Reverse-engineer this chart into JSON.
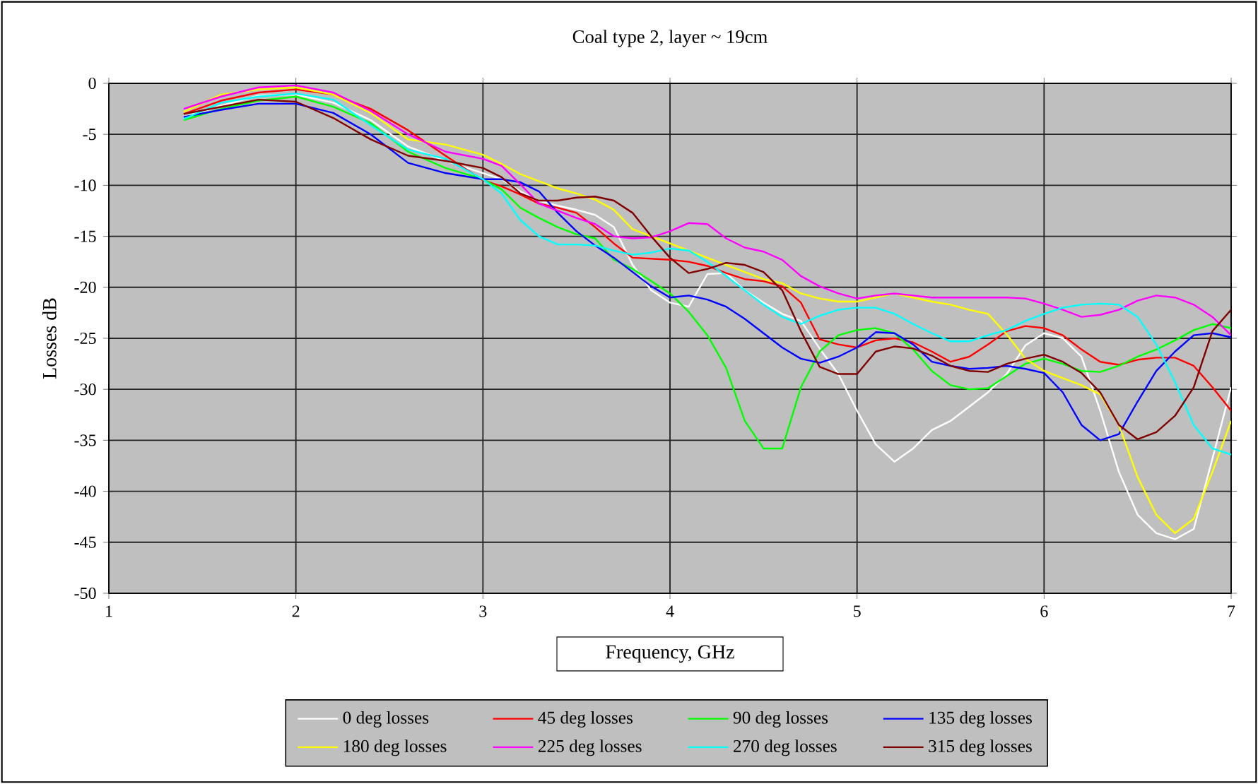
{
  "chart_data": {
    "type": "line",
    "title": "Coal type 2, layer ~ 19cm",
    "xlabel": "Frequency, GHz",
    "ylabel": "Losses dB",
    "x": [
      1.4,
      1.6,
      1.8,
      2.0,
      2.2,
      2.4,
      2.6,
      2.8,
      3.0,
      3.1,
      3.2,
      3.3,
      3.4,
      3.5,
      3.6,
      3.7,
      3.8,
      3.9,
      4.0,
      4.1,
      4.2,
      4.3,
      4.4,
      4.5,
      4.6,
      4.7,
      4.8,
      4.9,
      5.0,
      5.1,
      5.2,
      5.3,
      5.4,
      5.5,
      5.6,
      5.7,
      5.8,
      5.9,
      6.0,
      6.1,
      6.2,
      6.3,
      6.4,
      6.5,
      6.6,
      6.7,
      6.8,
      6.9,
      7.0
    ],
    "series": [
      {
        "name": "0 deg losses",
        "color": "#ffffff",
        "values": [
          -3.3,
          -2.2,
          -1.2,
          -1.1,
          -1.9,
          -3.6,
          -6.2,
          -7.6,
          -8.8,
          -9.4,
          -10.6,
          -11.5,
          -12.0,
          -12.4,
          -12.9,
          -14.1,
          -17.8,
          -20.3,
          -21.5,
          -21.9,
          -18.7,
          -18.6,
          -20.3,
          -21.5,
          -22.6,
          -23.3,
          -26.0,
          -28.5,
          -32.1,
          -35.4,
          -37.1,
          -35.8,
          -34.0,
          -33.1,
          -31.7,
          -30.3,
          -28.5,
          -25.7,
          -24.5,
          -25.0,
          -26.8,
          -32.1,
          -38.1,
          -42.3,
          -44.1,
          -44.7,
          -43.7,
          -36.8,
          -29.8
        ]
      },
      {
        "name": "45 deg losses",
        "color": "#ff0000",
        "values": [
          -3.0,
          -1.7,
          -0.9,
          -0.6,
          -1.1,
          -2.5,
          -4.6,
          -7.1,
          -9.5,
          -10.1,
          -10.9,
          -11.8,
          -12.2,
          -12.7,
          -14.1,
          -15.7,
          -17.1,
          -17.2,
          -17.3,
          -17.5,
          -17.9,
          -18.6,
          -19.2,
          -19.4,
          -19.9,
          -21.5,
          -25.1,
          -25.6,
          -25.9,
          -25.2,
          -25.0,
          -25.4,
          -26.3,
          -27.3,
          -26.8,
          -25.6,
          -24.3,
          -23.8,
          -24.0,
          -24.7,
          -26.1,
          -27.3,
          -27.6,
          -27.1,
          -26.9,
          -26.9,
          -27.7,
          -29.8,
          -32.1
        ]
      },
      {
        "name": "90 deg losses",
        "color": "#00ff00",
        "values": [
          -3.6,
          -2.5,
          -1.7,
          -1.3,
          -2.3,
          -3.9,
          -6.7,
          -8.3,
          -9.4,
          -10.4,
          -12.2,
          -13.2,
          -14.1,
          -14.8,
          -15.2,
          -17.3,
          -18.2,
          -19.4,
          -20.6,
          -22.4,
          -24.7,
          -27.9,
          -33.1,
          -35.8,
          -35.8,
          -29.8,
          -26.3,
          -24.7,
          -24.2,
          -24.0,
          -24.5,
          -26.1,
          -28.2,
          -29.6,
          -30.0,
          -29.9,
          -28.7,
          -27.5,
          -27.0,
          -27.5,
          -28.2,
          -28.3,
          -27.7,
          -26.8,
          -26.1,
          -25.2,
          -24.2,
          -23.6,
          -24.0
        ]
      },
      {
        "name": "135 deg losses",
        "color": "#0000ff",
        "values": [
          -3.3,
          -2.6,
          -2.0,
          -2.0,
          -2.9,
          -5.0,
          -7.8,
          -8.8,
          -9.4,
          -9.4,
          -9.7,
          -10.6,
          -12.7,
          -14.5,
          -15.9,
          -17.1,
          -18.5,
          -19.9,
          -21.0,
          -20.8,
          -21.2,
          -21.9,
          -23.1,
          -24.5,
          -25.9,
          -27.0,
          -27.4,
          -26.8,
          -25.9,
          -24.4,
          -24.5,
          -25.6,
          -27.3,
          -27.7,
          -28.0,
          -27.9,
          -27.7,
          -28.0,
          -28.4,
          -30.3,
          -33.5,
          -35.0,
          -34.4,
          -31.2,
          -28.2,
          -26.3,
          -24.7,
          -24.5,
          -24.9
        ]
      },
      {
        "name": "180 deg losses",
        "color": "#ffff00",
        "values": [
          -2.8,
          -1.1,
          -0.6,
          -0.4,
          -1.1,
          -2.9,
          -5.5,
          -6.0,
          -7.0,
          -7.9,
          -8.9,
          -9.6,
          -10.3,
          -10.8,
          -11.4,
          -12.4,
          -14.3,
          -15.0,
          -15.7,
          -16.4,
          -17.1,
          -17.8,
          -18.5,
          -19.2,
          -19.6,
          -20.6,
          -21.1,
          -21.4,
          -21.4,
          -21.0,
          -20.6,
          -21.0,
          -21.4,
          -21.7,
          -22.2,
          -22.6,
          -24.6,
          -27.0,
          -28.2,
          -28.9,
          -29.6,
          -30.5,
          -33.5,
          -38.6,
          -42.3,
          -44.1,
          -42.7,
          -38.1,
          -33.1
        ]
      },
      {
        "name": "225 deg losses",
        "color": "#ff00ff",
        "values": [
          -2.5,
          -1.3,
          -0.4,
          -0.2,
          -0.9,
          -2.7,
          -5.0,
          -6.7,
          -7.4,
          -8.1,
          -9.9,
          -11.8,
          -12.5,
          -13.2,
          -13.8,
          -15.0,
          -15.2,
          -15.1,
          -14.5,
          -13.7,
          -13.8,
          -15.2,
          -16.1,
          -16.5,
          -17.3,
          -18.9,
          -19.9,
          -20.6,
          -21.1,
          -20.8,
          -20.6,
          -20.8,
          -21.0,
          -21.0,
          -21.0,
          -21.0,
          -21.0,
          -21.1,
          -21.6,
          -22.2,
          -22.9,
          -22.7,
          -22.2,
          -21.3,
          -20.8,
          -21.0,
          -21.7,
          -22.9,
          -24.7
        ]
      },
      {
        "name": "270 deg losses",
        "color": "#00ffff",
        "values": [
          -3.5,
          -1.9,
          -1.3,
          -1.0,
          -1.6,
          -4.1,
          -6.5,
          -7.4,
          -9.4,
          -10.8,
          -13.4,
          -15.0,
          -15.8,
          -15.8,
          -15.9,
          -16.4,
          -16.8,
          -16.6,
          -16.2,
          -16.4,
          -17.5,
          -18.9,
          -20.3,
          -21.7,
          -22.9,
          -23.6,
          -22.8,
          -22.2,
          -22.0,
          -22.0,
          -22.6,
          -23.6,
          -24.5,
          -25.3,
          -25.3,
          -24.7,
          -24.2,
          -23.3,
          -22.6,
          -22.0,
          -21.7,
          -21.6,
          -21.7,
          -22.9,
          -25.6,
          -29.3,
          -33.5,
          -35.8,
          -36.4
        ]
      },
      {
        "name": "315 deg losses",
        "color": "#800000",
        "values": [
          -3.0,
          -2.3,
          -1.6,
          -1.8,
          -3.4,
          -5.5,
          -7.1,
          -7.6,
          -8.3,
          -9.2,
          -10.8,
          -11.5,
          -11.5,
          -11.2,
          -11.1,
          -11.5,
          -12.7,
          -15.0,
          -17.1,
          -18.6,
          -18.2,
          -17.6,
          -17.8,
          -18.5,
          -20.3,
          -24.3,
          -27.8,
          -28.5,
          -28.5,
          -26.3,
          -25.8,
          -26.0,
          -26.7,
          -27.7,
          -28.2,
          -28.3,
          -27.5,
          -27.0,
          -26.6,
          -27.3,
          -28.4,
          -30.3,
          -33.5,
          -34.9,
          -34.2,
          -32.6,
          -29.8,
          -24.3,
          -22.2
        ]
      }
    ],
    "xlim": [
      1,
      7
    ],
    "xticks": [
      1,
      2,
      3,
      4,
      5,
      6,
      7
    ],
    "ylim": [
      -50,
      0
    ],
    "yticks": [
      -50,
      -45,
      -40,
      -35,
      -30,
      -25,
      -20,
      -15,
      -10,
      -5,
      0
    ],
    "grid": true,
    "legend": "bottom",
    "marker": "none",
    "line_style": "solid"
  }
}
